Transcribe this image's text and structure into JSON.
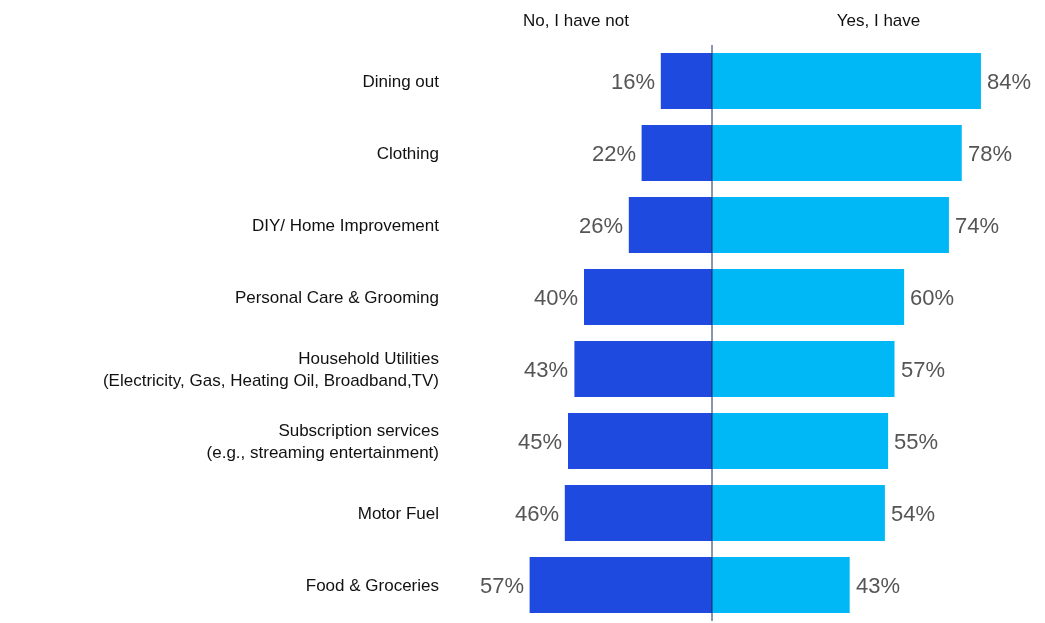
{
  "chart_data": [
    {
      "type": "bar",
      "orientation": "horizontal",
      "title": "No, I have not",
      "tick_labels": "y",
      "categories": [
        "Dining out",
        "Clothing",
        "DIY/ Home Improvement",
        "Personal Care & Grooming",
        "Household Utilities\n(Electricity, Gas, Heating Oil, Broadband,TV)",
        "Subscription services\n(e.g., streaming entertainment)",
        "Motor Fuel",
        "Food & Groceries"
      ],
      "series": [
        {
          "color": "#1f4ae0",
          "values": [
            16,
            22,
            26,
            40,
            43,
            45,
            46,
            57
          ],
          "value_labels": [
            "16%",
            "22%",
            "26%",
            "40%",
            "43%",
            "45%",
            "46%",
            "57%"
          ]
        }
      ],
      "grid": false,
      "legend": false
    },
    {
      "type": "bar",
      "orientation": "horizontal",
      "title": "Yes, I have",
      "tick_labels": false,
      "categories": [
        null,
        null,
        null,
        null,
        null,
        null,
        null,
        null
      ],
      "series": [
        {
          "color": "#00b8f5",
          "values": [
            84,
            78,
            74,
            60,
            57,
            55,
            54,
            43
          ],
          "value_labels": [
            "84%",
            "78%",
            "74%",
            "60%",
            "57%",
            "55%",
            "54%",
            "43%"
          ]
        }
      ],
      "grid": false,
      "legend": false
    }
  ]
}
